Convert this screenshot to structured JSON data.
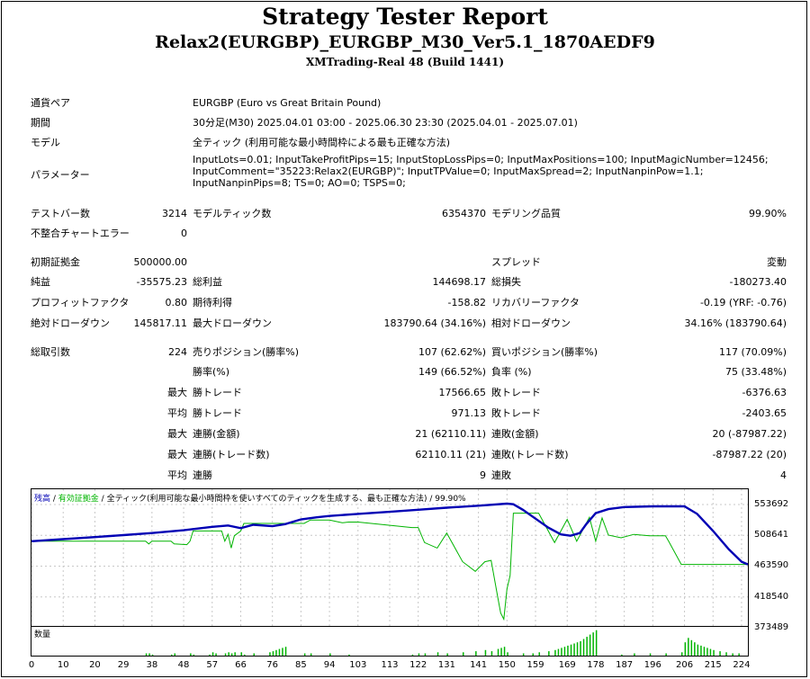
{
  "header": {
    "title": "Strategy Tester Report",
    "ea_name": "Relax2(EURGBP)_EURGBP_M30_Ver5.1_1870AEDF9",
    "server": "XMTrading-Real 48 (Build 1441)"
  },
  "info": {
    "symbol_label": "通貨ペア",
    "symbol": "EURGBP (Euro vs Great Britain Pound)",
    "period_label": "期間",
    "period": "30分足(M30) 2025.04.01 03:00 - 2025.06.30 23:30 (2025.04.01 - 2025.07.01)",
    "model_label": "モデル",
    "model": "全ティック (利用可能な最小時間枠による最も正確な方法)",
    "params_label": "パラメーター",
    "params": "InputLots=0.01; InputTakeProfitPips=15; InputStopLossPips=0; InputMaxPositions=100; InputMagicNumber=12456; InputComment=\"35223:Relax2(EURGBP)\"; InputTPValue=0; InputMaxSpread=2; InputNanpinPow=1.1; InputNanpinPips=8; TS=0; AO=0; TSPS=0;"
  },
  "stats": {
    "bars_label": "テストバー数",
    "bars": "3214",
    "ticks_label": "モデルティック数",
    "ticks": "6354370",
    "quality_label": "モデリング品質",
    "quality": "99.90%",
    "errors_label": "不整合チャートエラー",
    "errors": "0",
    "deposit_label": "初期証拠金",
    "deposit": "500000.00",
    "spread_label": "スプレッド",
    "spread": "変動",
    "net_label": "純益",
    "net": "-35575.23",
    "gross_profit_label": "総利益",
    "gross_profit": "144698.17",
    "gross_loss_label": "総損失",
    "gross_loss": "-180273.40",
    "pf_label": "プロフィットファクタ",
    "pf": "0.80",
    "expected_label": "期待利得",
    "expected": "-158.82",
    "recovery_label": "リカバリーファクタ",
    "recovery": "-0.19 (YRF: -0.76)",
    "abs_dd_label": "絶対ドローダウン",
    "abs_dd": "145817.11",
    "max_dd_label": "最大ドローダウン",
    "max_dd": "183790.64 (34.16%)",
    "rel_dd_label": "相対ドローダウン",
    "rel_dd": "34.16% (183790.64)",
    "trades_label": "総取引数",
    "trades": "224",
    "short_label": "売りポジション(勝率%)",
    "short": "107 (62.62%)",
    "long_label": "買いポジション(勝率%)",
    "long": "117 (70.09%)",
    "win_rate_label": "勝率(%)",
    "win_rate": "149 (66.52%)",
    "loss_rate_label": "負率 (%)",
    "loss_rate": "75 (33.48%)",
    "max_word": "最大",
    "avg_word": "平均",
    "max_win_trade_label": "勝トレード",
    "max_win_trade": "17566.65",
    "max_loss_trade_label": "敗トレード",
    "max_loss_trade": "-6376.63",
    "avg_win_trade_label": "勝トレード",
    "avg_win_trade": "971.13",
    "avg_loss_trade_label": "敗トレード",
    "avg_loss_trade": "-2403.65",
    "max_cons_win_amt_label": "連勝(金額)",
    "max_cons_win_amt": "21 (62110.11)",
    "max_cons_loss_amt_label": "連敗(金額)",
    "max_cons_loss_amt": "20 (-87987.22)",
    "max_cons_win_trd_label": "連勝(トレード数)",
    "max_cons_win_trd": "62110.11 (21)",
    "max_cons_loss_trd_label": "連敗(トレード数)",
    "max_cons_loss_trd": "-87987.22 (20)",
    "avg_cons_win_label": "連勝",
    "avg_cons_win": "9",
    "avg_cons_loss_label": "連敗",
    "avg_cons_loss": "4"
  },
  "chart_legend": {
    "balance": "残高",
    "sep1": " / ",
    "equity": "有効証拠金",
    "sep2": " / ",
    "model": "全ティック(利用可能な最小時間枠を使いすべてのティックを生成する、最も正確な方法)",
    "quality": " / 99.90%"
  },
  "volume_label": "数量",
  "colors": {
    "balance": "#0000b4",
    "equity": "#00b400",
    "volume": "#00b400"
  },
  "chart_data": {
    "type": "line",
    "ylim": [
      373489,
      576000
    ],
    "yticks": [
      "553692",
      "508641",
      "463590",
      "418540",
      "373489"
    ],
    "xticks": [
      "0",
      "10",
      "20",
      "29",
      "38",
      "48",
      "57",
      "66",
      "76",
      "85",
      "94",
      "103",
      "113",
      "122",
      "131",
      "141",
      "150",
      "159",
      "169",
      "178",
      "187",
      "196",
      "206",
      "215",
      "224"
    ],
    "xmax": 226,
    "series": [
      {
        "name": "残高",
        "x": [
          0,
          10,
          20,
          29,
          38,
          48,
          57,
          62,
          66,
          70,
          76,
          80,
          85,
          90,
          94,
          103,
          113,
          122,
          131,
          141,
          150,
          152,
          155,
          159,
          163,
          167,
          170,
          173,
          175,
          178,
          182,
          187,
          196,
          206,
          210,
          215,
          220,
          224,
          226
        ],
        "y": [
          500000,
          503000,
          506000,
          509000,
          512000,
          516000,
          521000,
          523000,
          519000,
          524000,
          522000,
          525000,
          532000,
          535000,
          537000,
          540000,
          543000,
          546000,
          549000,
          552000,
          555000,
          554000,
          546000,
          533000,
          520000,
          510000,
          508000,
          512000,
          525000,
          541000,
          547000,
          550000,
          551000,
          551000,
          540000,
          515000,
          488000,
          470000,
          466000
        ]
      },
      {
        "name": "有効証拠金",
        "x": [
          0,
          36,
          37,
          38,
          44,
          45,
          49,
          50,
          51,
          60,
          61,
          62,
          63,
          64,
          66,
          67,
          80,
          86,
          88,
          94,
          98,
          100,
          103,
          120,
          122,
          124,
          128,
          131,
          136,
          140,
          143,
          145,
          147,
          148,
          149,
          150,
          151,
          152,
          153,
          158,
          160,
          165,
          169,
          172,
          176,
          178,
          180,
          182,
          186,
          190,
          195,
          200,
          201,
          205,
          206,
          215,
          224,
          226
        ],
        "y": [
          500000,
          500000,
          496000,
          500000,
          500000,
          496000,
          495000,
          500000,
          515000,
          515000,
          500000,
          510000,
          490000,
          508000,
          515000,
          526000,
          526000,
          526000,
          531000,
          531000,
          527000,
          528000,
          528000,
          520000,
          520000,
          498000,
          490000,
          512000,
          470000,
          456000,
          470000,
          472000,
          420000,
          395000,
          386000,
          430000,
          450000,
          541000,
          541000,
          541000,
          541000,
          498000,
          532000,
          500000,
          535000,
          500000,
          534000,
          509000,
          505000,
          510000,
          508000,
          508000,
          500000,
          466000,
          466000,
          466000,
          466000,
          466000
        ]
      }
    ]
  },
  "volume_data": {
    "x": [
      36,
      37,
      38,
      44,
      45,
      50,
      51,
      56,
      57,
      58,
      61,
      62,
      63,
      64,
      66,
      67,
      70,
      75,
      76,
      77,
      78,
      79,
      80,
      86,
      88,
      94,
      100,
      120,
      122,
      124,
      128,
      131,
      136,
      140,
      143,
      145,
      147,
      148,
      149,
      150,
      155,
      158,
      160,
      163,
      165,
      166,
      167,
      168,
      169,
      170,
      171,
      172,
      173,
      174,
      175,
      176,
      177,
      178,
      186,
      190,
      195,
      200,
      205,
      206,
      207,
      208,
      209,
      210,
      211,
      212,
      213,
      214,
      215,
      217,
      219,
      221,
      223
    ],
    "v": [
      2,
      2,
      1,
      1,
      2,
      2,
      1,
      1,
      3,
      2,
      2,
      3,
      2,
      3,
      3,
      1,
      2,
      3,
      4,
      5,
      6,
      7,
      8,
      2,
      2,
      2,
      1,
      1,
      2,
      2,
      3,
      2,
      3,
      4,
      5,
      4,
      6,
      7,
      8,
      3,
      2,
      2,
      3,
      4,
      5,
      6,
      7,
      8,
      9,
      10,
      11,
      12,
      13,
      15,
      17,
      19,
      21,
      23,
      1,
      2,
      2,
      2,
      3,
      12,
      16,
      14,
      12,
      10,
      9,
      8,
      7,
      6,
      5,
      4,
      3,
      2,
      2
    ],
    "vmax": 26
  }
}
